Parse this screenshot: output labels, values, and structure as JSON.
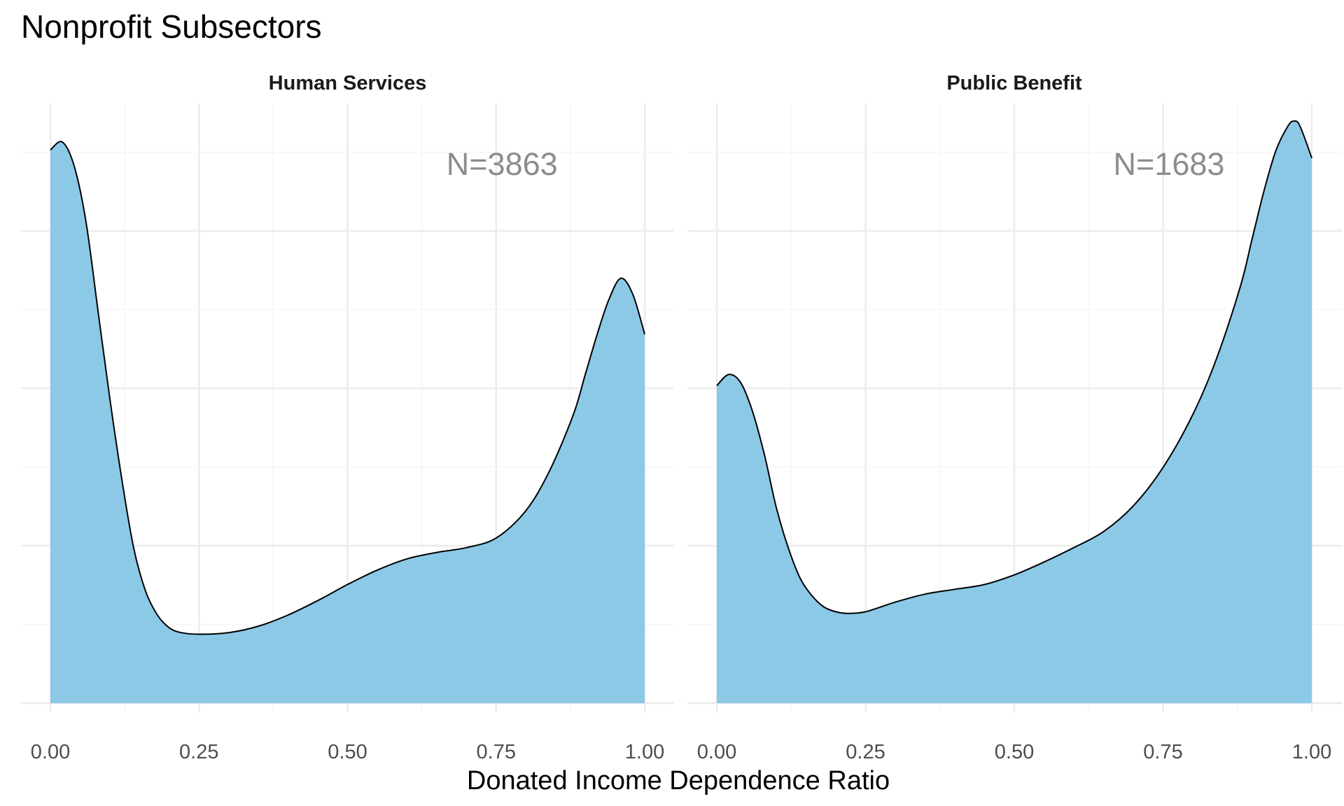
{
  "chart_data": {
    "type": "area",
    "title": "Nonprofit Subsectors",
    "xlabel": "Donated Income Dependence Ratio",
    "ylabel": "",
    "xlim": [
      0,
      1
    ],
    "x_ticks": [
      "0.00",
      "0.25",
      "0.50",
      "0.75",
      "1.00"
    ],
    "y_ticks_labeled": false,
    "ylim": [
      0,
      3.6
    ],
    "grid": true,
    "legend": "none",
    "fill_color": "#89C8E7",
    "line_color": "#000000",
    "panels": [
      {
        "name": "Human Services",
        "annotation": "N=3863",
        "x": [
          0,
          0.02,
          0.04,
          0.06,
          0.08,
          0.1,
          0.12,
          0.14,
          0.16,
          0.18,
          0.2,
          0.22,
          0.25,
          0.3,
          0.35,
          0.4,
          0.45,
          0.5,
          0.55,
          0.6,
          0.65,
          0.7,
          0.75,
          0.8,
          0.84,
          0.88,
          0.9,
          0.92,
          0.94,
          0.96,
          0.98,
          1.0
        ],
        "y": [
          3.45,
          3.5,
          3.35,
          3.0,
          2.45,
          1.9,
          1.4,
          0.97,
          0.7,
          0.55,
          0.47,
          0.44,
          0.43,
          0.44,
          0.48,
          0.55,
          0.64,
          0.74,
          0.83,
          0.9,
          0.94,
          0.97,
          1.03,
          1.2,
          1.45,
          1.8,
          2.05,
          2.3,
          2.52,
          2.65,
          2.55,
          2.3
        ]
      },
      {
        "name": "Public Benefit",
        "annotation": "N=1683",
        "x": [
          0,
          0.02,
          0.04,
          0.06,
          0.08,
          0.1,
          0.12,
          0.14,
          0.16,
          0.18,
          0.2,
          0.22,
          0.25,
          0.3,
          0.35,
          0.4,
          0.45,
          0.5,
          0.55,
          0.6,
          0.65,
          0.7,
          0.75,
          0.8,
          0.84,
          0.88,
          0.9,
          0.92,
          0.94,
          0.96,
          0.97,
          0.98,
          1.0
        ],
        "y": [
          1.98,
          2.05,
          2.0,
          1.82,
          1.55,
          1.22,
          0.97,
          0.78,
          0.67,
          0.6,
          0.57,
          0.56,
          0.57,
          0.63,
          0.68,
          0.71,
          0.74,
          0.8,
          0.88,
          0.97,
          1.07,
          1.23,
          1.47,
          1.8,
          2.15,
          2.6,
          2.9,
          3.2,
          3.45,
          3.6,
          3.63,
          3.6,
          3.4
        ]
      }
    ]
  }
}
